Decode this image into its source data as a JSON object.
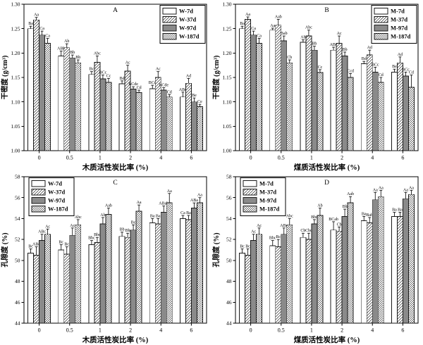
{
  "figure": {
    "background": "#ffffff",
    "axis_color": "#000000",
    "bar_stroke": "#1a1a1a",
    "gray_fill": "#8a8a8a"
  },
  "chart_data": [
    {
      "type": "bar",
      "panel_label": "A",
      "ylabel": "干密度 (g/cm³)",
      "xlabel": "木质活性炭比率 (%)",
      "ylim": [
        1.0,
        1.3
      ],
      "ytick_step": 0.05,
      "ytick_decimals": 2,
      "grid": false,
      "legend_position": "top-right",
      "categories": [
        "0",
        "0.5",
        "1",
        "2",
        "4",
        "6"
      ],
      "series": [
        {
          "name": "W-7d",
          "pattern": "white",
          "values": [
            1.25,
            1.194,
            1.156,
            1.137,
            1.127,
            1.11
          ],
          "errors": [
            0.005,
            0.01,
            0.006,
            0.006,
            0.007,
            0.01
          ],
          "sig": [
            "Ba",
            "ABb",
            "Bc",
            "Bd",
            "BCd",
            "ABd"
          ]
        },
        {
          "name": "W-37d",
          "pattern": "hatch",
          "values": [
            1.268,
            1.211,
            1.181,
            1.163,
            1.15,
            1.138
          ],
          "errors": [
            0.005,
            0.008,
            0.013,
            0.012,
            0.012,
            0.01
          ],
          "sig": [
            "Aa",
            "Ab",
            "Abc",
            "Ac",
            "Ac",
            "Ad"
          ]
        },
        {
          "name": "W-97d",
          "pattern": "gray",
          "values": [
            1.237,
            1.19,
            1.147,
            1.126,
            1.124,
            1.1
          ],
          "errors": [
            0.008,
            0.006,
            0.008,
            0.005,
            0.005,
            0.008
          ],
          "sig": [
            "Ca",
            "Bb",
            "BCc",
            "BCde",
            "BCde",
            "Be"
          ]
        },
        {
          "name": "W-187d",
          "pattern": "cross",
          "values": [
            1.22,
            1.18,
            1.14,
            1.119,
            1.11,
            1.09
          ],
          "errors": [
            0.01,
            0.006,
            0.008,
            0.005,
            0.005,
            0.005
          ],
          "sig": [
            "Ca",
            "Bb",
            "Cc",
            "Cd",
            "Cd",
            "Ce"
          ]
        }
      ]
    },
    {
      "type": "bar",
      "panel_label": "B",
      "ylabel": "干密度 (g/cm³)",
      "xlabel": "煤质活性炭比率 (%)",
      "ylim": [
        1.0,
        1.3
      ],
      "ytick_step": 0.05,
      "ytick_decimals": 2,
      "grid": false,
      "legend_position": "top-right",
      "categories": [
        "0",
        "0.5",
        "1",
        "2",
        "4",
        "6"
      ],
      "series": [
        {
          "name": "M-7d",
          "pattern": "white",
          "values": [
            1.25,
            1.247,
            1.222,
            1.206,
            1.178,
            1.161
          ],
          "errors": [
            0.005,
            0.004,
            0.005,
            0.006,
            0.005,
            0.006
          ],
          "sig": [
            "Ba",
            "Aa",
            "Ab",
            "ABc",
            "Bd",
            "Be"
          ]
        },
        {
          "name": "M-37d",
          "pattern": "hatch",
          "values": [
            1.269,
            1.257,
            1.235,
            1.22,
            1.196,
            1.18
          ],
          "errors": [
            0.005,
            0.012,
            0.012,
            0.015,
            0.01,
            0.012
          ],
          "sig": [
            "Aa",
            "Aab",
            "Abc",
            "Ac",
            "Ad",
            "Ad"
          ]
        },
        {
          "name": "M-97d",
          "pattern": "gray",
          "values": [
            1.237,
            1.225,
            1.206,
            1.194,
            1.161,
            1.153
          ],
          "errors": [
            0.008,
            0.01,
            0.008,
            0.008,
            0.01,
            0.008
          ],
          "sig": [
            "Ca",
            "Bab",
            "Bb",
            "Bb",
            "BCc",
            "BCc"
          ]
        },
        {
          "name": "M-187d",
          "pattern": "cross",
          "values": [
            1.22,
            1.18,
            1.16,
            1.15,
            1.14,
            1.13
          ],
          "errors": [
            0.01,
            0.006,
            0.006,
            0.008,
            0.01,
            0.025
          ],
          "sig": [
            "Ca",
            "Cb",
            "Cc",
            "Ccd",
            "Cd",
            "Cd"
          ]
        }
      ]
    },
    {
      "type": "bar",
      "panel_label": "C",
      "ylabel": "孔隙度 (%)",
      "xlabel": "木质活性炭比率 (%)",
      "ylim": [
        44,
        58
      ],
      "ytick_step": 2,
      "ytick_decimals": 0,
      "grid": false,
      "legend_position": "top-left",
      "categories": [
        "0",
        "0.5",
        "1",
        "2",
        "4",
        "6"
      ],
      "series": [
        {
          "name": "W-7d",
          "pattern": "white",
          "values": [
            50.7,
            51.0,
            51.5,
            52.3,
            53.6,
            54.0
          ],
          "errors": [
            0.4,
            0.5,
            0.4,
            0.4,
            0.4,
            0.3
          ],
          "sig": [
            "Bc",
            "Bc",
            "Bbc",
            "Bb",
            "Ba",
            "Ca"
          ]
        },
        {
          "name": "W-37d",
          "pattern": "hatch",
          "values": [
            50.5,
            50.6,
            51.7,
            52.2,
            53.5,
            53.9
          ],
          "errors": [
            0.8,
            0.7,
            0.5,
            0.4,
            0.5,
            0.4
          ],
          "sig": [
            "ABc",
            "Bc",
            "Bbc",
            "Bb",
            "Ba",
            "Ba"
          ]
        },
        {
          "name": "W-97d",
          "pattern": "gray",
          "values": [
            51.9,
            52.4,
            53.5,
            52.9,
            54.6,
            55.0
          ],
          "errors": [
            0.6,
            0.7,
            0.6,
            0.5,
            0.6,
            0.5
          ],
          "sig": [
            "ABc",
            "Ac",
            "Ab",
            "Bc",
            "ABab",
            "ABa"
          ]
        },
        {
          "name": "W-187d",
          "pattern": "cross",
          "values": [
            52.5,
            53.4,
            54.4,
            54.7,
            55.5,
            55.5
          ],
          "errors": [
            0.5,
            0.5,
            0.6,
            0.6,
            0.9,
            0.5
          ],
          "sig": [
            "Ac",
            "Abc",
            "Aab",
            "Aa",
            "Aa",
            "Aa"
          ]
        }
      ]
    },
    {
      "type": "bar",
      "panel_label": "D",
      "ylabel": "孔隙度 (%)",
      "xlabel": "煤质活性炭比率 (%)",
      "ylim": [
        44,
        58
      ],
      "ytick_step": 2,
      "ytick_decimals": 0,
      "grid": false,
      "legend_position": "top-left",
      "categories": [
        "0",
        "0.5",
        "1",
        "2",
        "4",
        "6"
      ],
      "series": [
        {
          "name": "M-7d",
          "pattern": "white",
          "values": [
            50.7,
            51.4,
            52.2,
            52.9,
            53.8,
            54.2
          ],
          "errors": [
            0.4,
            0.5,
            0.4,
            0.8,
            0.4,
            0.4
          ],
          "sig": [
            "Bc",
            "Bbc",
            "Cb",
            "BCab",
            "Ba",
            "Ba"
          ]
        },
        {
          "name": "M-37d",
          "pattern": "hatch",
          "values": [
            50.5,
            51.3,
            52.0,
            52.8,
            53.6,
            54.2
          ],
          "errors": [
            0.6,
            0.7,
            0.6,
            0.4,
            0.5,
            0.4
          ],
          "sig": [
            "Bc",
            "Bc",
            "Cbc",
            "Cb",
            "Bab",
            "Ba"
          ]
        },
        {
          "name": "M-97d",
          "pattern": "gray",
          "values": [
            51.9,
            52.5,
            53.5,
            54.2,
            55.8,
            55.9
          ],
          "errors": [
            0.6,
            0.6,
            0.4,
            0.7,
            0.7,
            0.6
          ],
          "sig": [
            "Ac",
            "ABc",
            "Bbc",
            "Bb",
            "Aa",
            "Aa"
          ]
        },
        {
          "name": "M-187d",
          "pattern": "cross",
          "values": [
            52.5,
            53.4,
            54.3,
            55.5,
            56.1,
            56.3
          ],
          "errors": [
            0.6,
            0.6,
            0.7,
            0.6,
            0.6,
            0.4
          ],
          "sig": [
            "Ac",
            "Abc",
            "Ab",
            "Aab",
            "Aa",
            "Aa"
          ]
        }
      ]
    }
  ]
}
